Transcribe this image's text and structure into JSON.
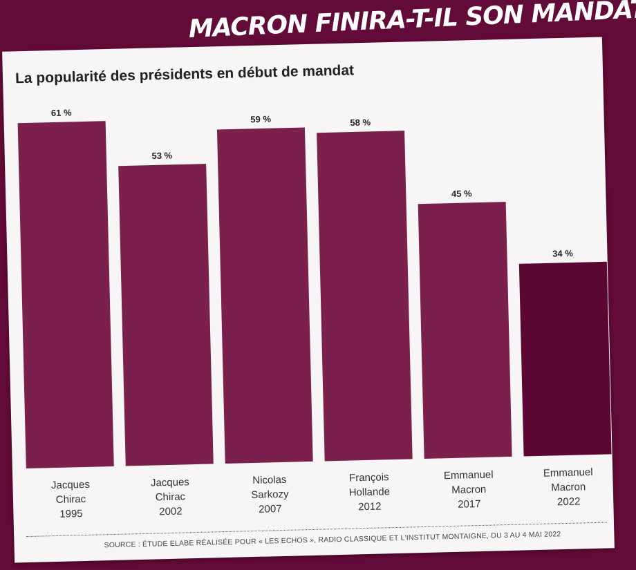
{
  "banner": "MACRON FINIRA-T-IL SON MANDAT ?",
  "chart_data": {
    "type": "bar",
    "title": "La popularité des présidents en début de mandat",
    "categories": [
      [
        "Jacques",
        "Chirac",
        "1995"
      ],
      [
        "Jacques",
        "Chirac",
        "2002"
      ],
      [
        "Nicolas",
        "Sarkozy",
        "2007"
      ],
      [
        "François",
        "Hollande",
        "2012"
      ],
      [
        "Emmanuel",
        "Macron",
        "2017"
      ],
      [
        "Emmanuel",
        "Macron",
        "2022"
      ]
    ],
    "values": [
      61,
      53,
      59,
      58,
      45,
      34
    ],
    "value_labels": [
      "61 %",
      "53 %",
      "59 %",
      "58 %",
      "45 %",
      "34 %"
    ],
    "unit": "%",
    "ylim": [
      0,
      61
    ],
    "grid": false,
    "colors": [
      "#7b204c",
      "#7b204c",
      "#7b204c",
      "#7b204c",
      "#7b204c",
      "#5c0634"
    ],
    "source": "SOURCE : ÉTUDE ELABE RÉALISÉE POUR « LES ECHOS », RADIO CLASSIQUE ET L'INSTITUT MONTAIGNE, DU 3 AU 4 MAI 2022"
  }
}
